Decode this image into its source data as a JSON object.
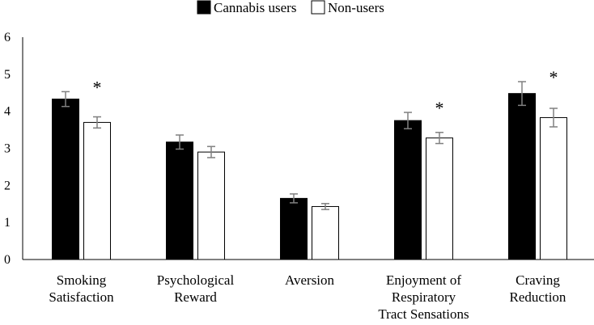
{
  "chart_data": {
    "type": "bar",
    "title": "",
    "xlabel": "",
    "ylabel": "",
    "ylim": [
      0,
      6
    ],
    "yticks": [
      "0",
      "1",
      "2",
      "3",
      "4",
      "5",
      "6"
    ],
    "grid": false,
    "legend_position": "top-center",
    "categories": [
      [
        "Smoking",
        "Satisfaction"
      ],
      [
        "Psychological",
        "Reward"
      ],
      [
        "Aversion"
      ],
      [
        "Enjoyment of",
        "Respiratory",
        "Tract Sensations"
      ],
      [
        "Craving",
        "Reduction"
      ]
    ],
    "series": [
      {
        "name": "Cannabis users",
        "fill": "#000000",
        "values": [
          4.33,
          3.17,
          1.65,
          3.75,
          4.48
        ],
        "error": [
          0.2,
          0.19,
          0.12,
          0.22,
          0.32
        ]
      },
      {
        "name": "Non-users",
        "fill": "#ffffff",
        "values": [
          3.7,
          2.9,
          1.43,
          3.28,
          3.83
        ],
        "error": [
          0.15,
          0.15,
          0.08,
          0.15,
          0.25
        ]
      }
    ],
    "annotations": [
      "*",
      "",
      "",
      "*",
      "*"
    ],
    "errorbar_color": "#808080"
  }
}
